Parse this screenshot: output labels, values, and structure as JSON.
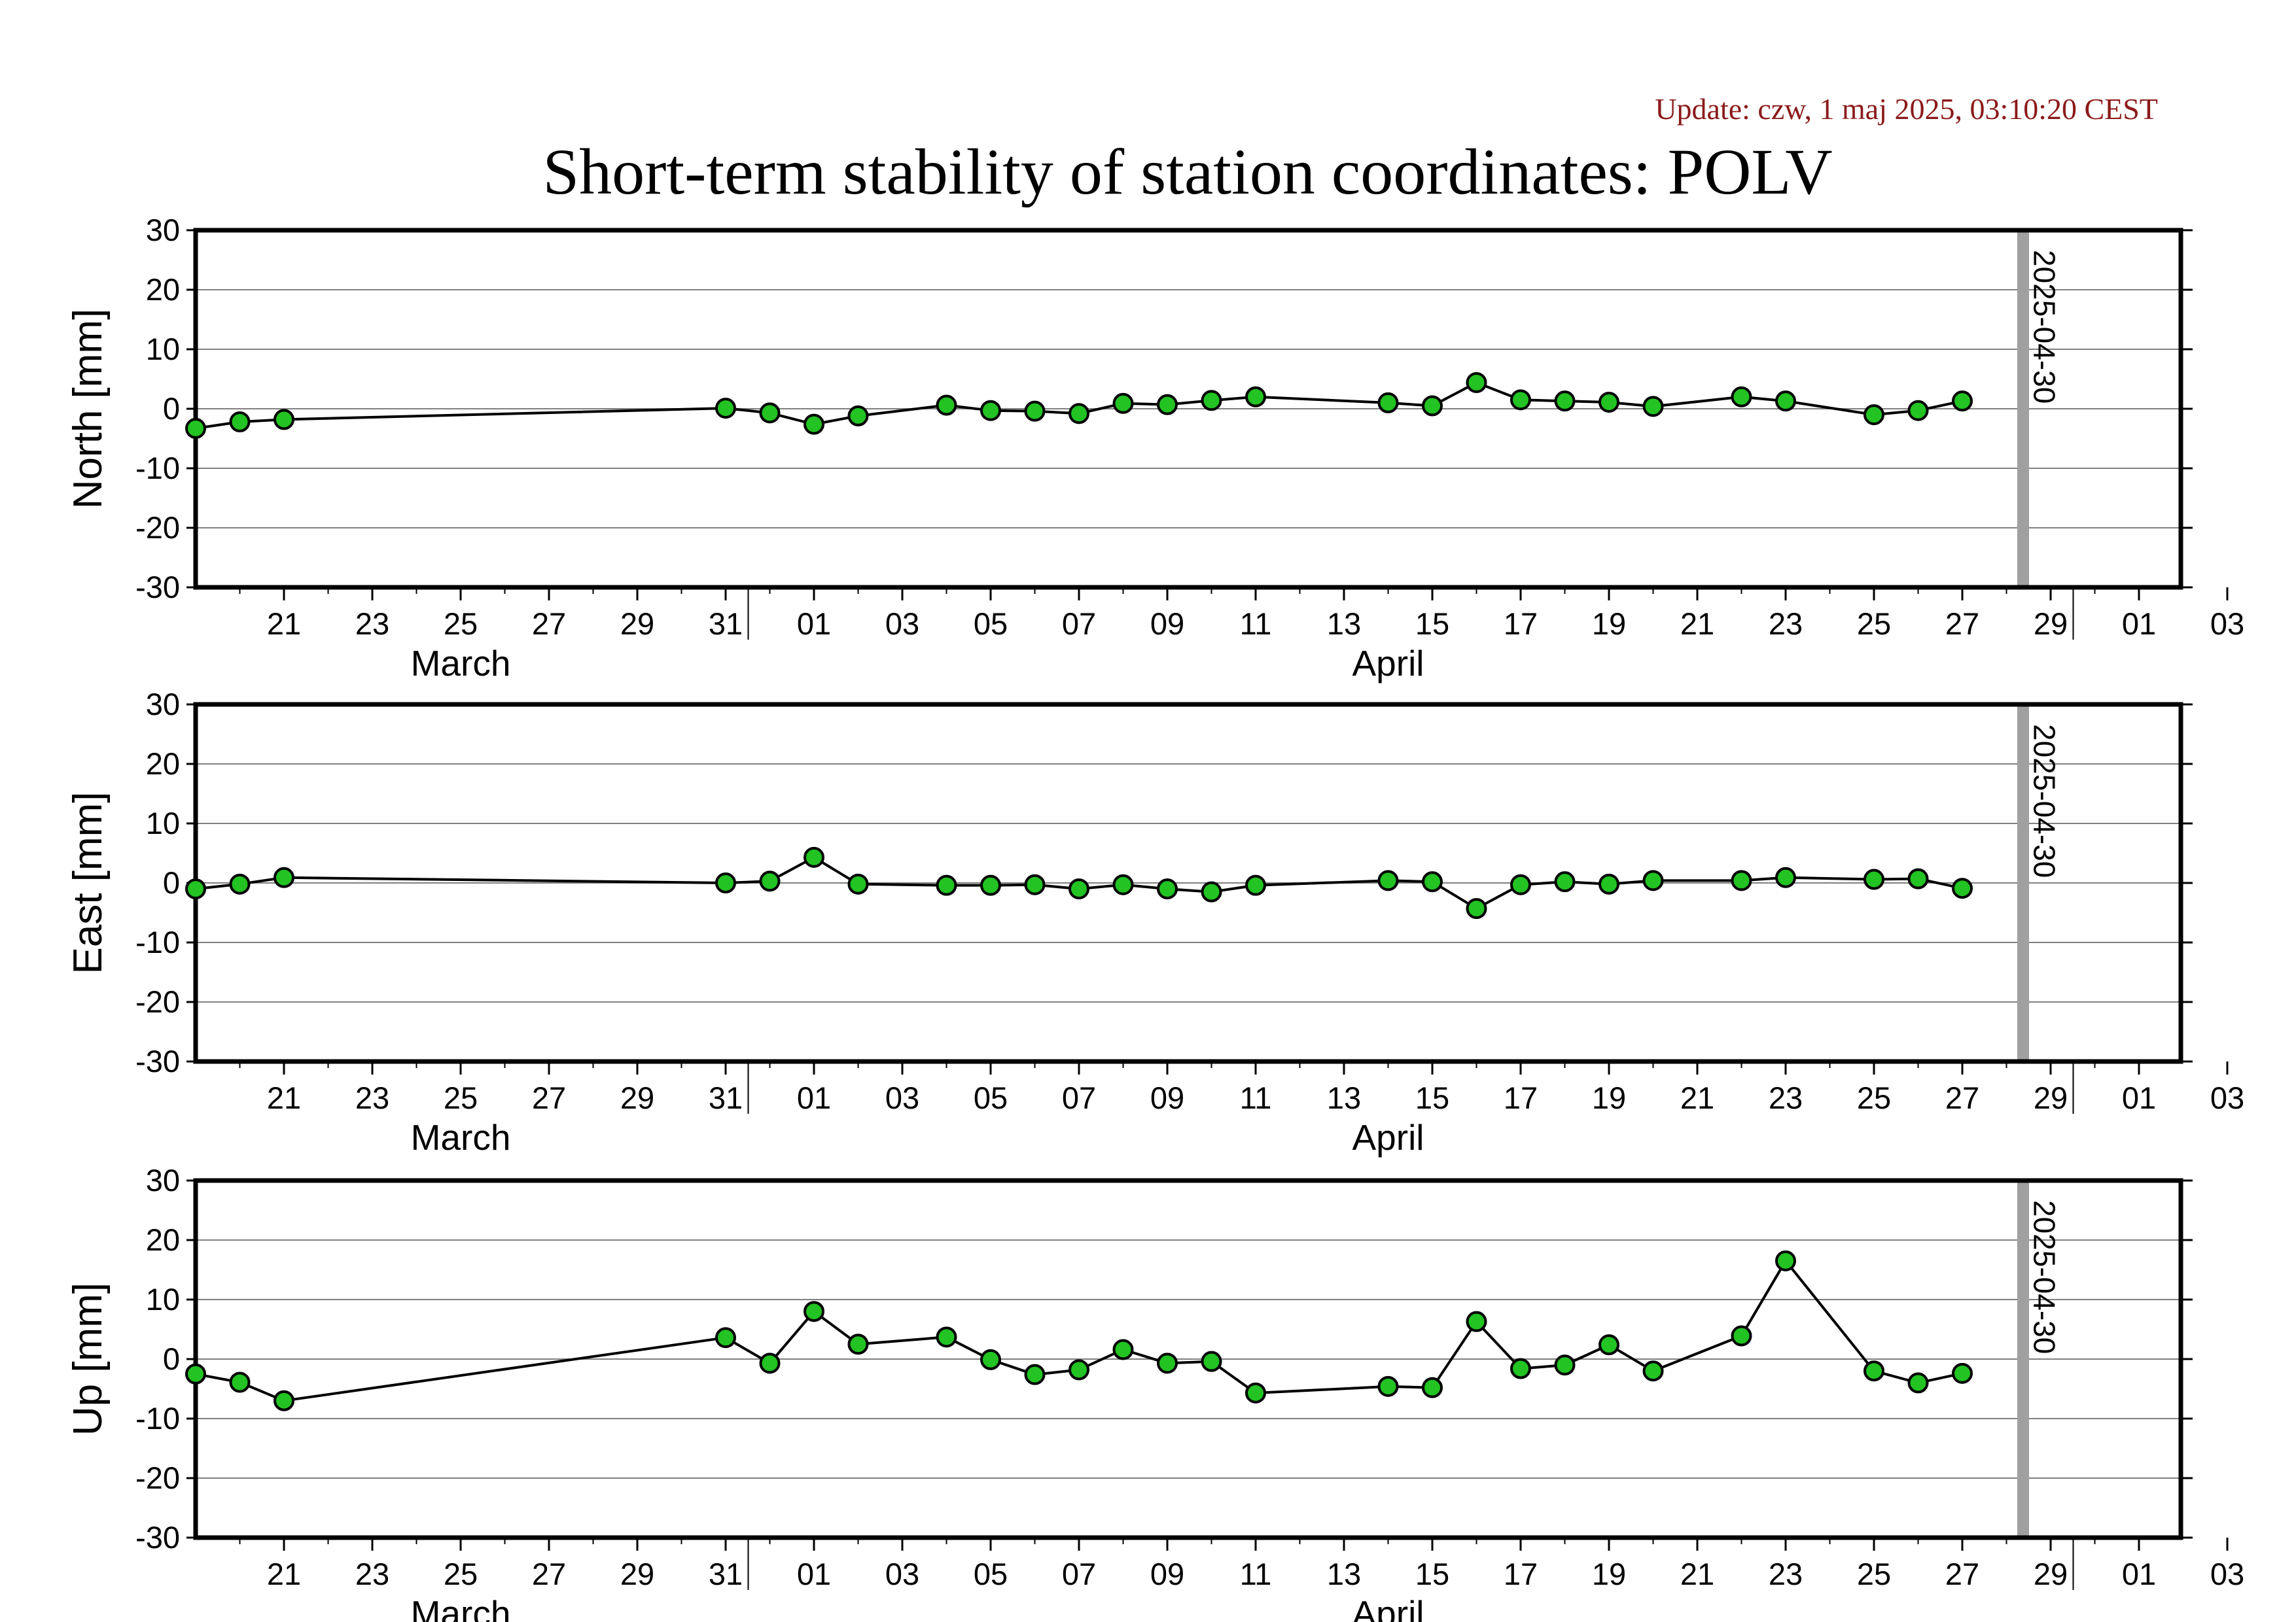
{
  "update": "Update: czw, 1 maj 2025, 03:10:20 CEST",
  "title": "Short-term stability of station coordinates: POLV",
  "colors": {
    "marker_fill": "#22c322",
    "marker_stroke": "#000000",
    "line": "#000000",
    "grid": "#808080",
    "vline": "#a0a0a0"
  },
  "chart_data": [
    {
      "type": "line",
      "title": "",
      "xlabel": "",
      "ylabel": "North [mm]",
      "ylim": [
        -30,
        30
      ],
      "y_ticks": [
        -30,
        -20,
        -10,
        0,
        10,
        20,
        30
      ],
      "xlim": [
        "2025-03-19",
        "2025-05-04"
      ],
      "x_tick_labels": [
        "21",
        "23",
        "25",
        "27",
        "29",
        "31",
        "01",
        "03",
        "05",
        "07",
        "09",
        "11",
        "13",
        "15",
        "17",
        "19",
        "21",
        "23",
        "25",
        "27",
        "29",
        "01",
        "03"
      ],
      "month_labels": [
        "March",
        "April"
      ],
      "grid": "horizontal",
      "marker_date": "2025-04-30",
      "marker_label": "2025-04-30",
      "series": [
        {
          "x": [
            "2025-03-19",
            "2025-03-20",
            "2025-03-21",
            "2025-03-31",
            "2025-04-01",
            "2025-04-02",
            "2025-04-03",
            "2025-04-05",
            "2025-04-06",
            "2025-04-07",
            "2025-04-08",
            "2025-04-09",
            "2025-04-10",
            "2025-04-11",
            "2025-04-12",
            "2025-04-15",
            "2025-04-16",
            "2025-04-17",
            "2025-04-18",
            "2025-04-19",
            "2025-04-20",
            "2025-04-21",
            "2025-04-23",
            "2025-04-24",
            "2025-04-26",
            "2025-04-27",
            "2025-04-28"
          ],
          "values": [
            -3.3,
            -2.2,
            -1.8,
            0.1,
            -0.7,
            -2.6,
            -1.2,
            0.6,
            -0.3,
            -0.4,
            -0.8,
            0.9,
            0.7,
            1.4,
            2.0,
            1.0,
            0.5,
            4.4,
            1.5,
            1.3,
            1.1,
            0.4,
            2.0,
            1.3,
            -1.0,
            -0.3,
            1.3
          ]
        }
      ]
    },
    {
      "type": "line",
      "title": "",
      "xlabel": "",
      "ylabel": "East [mm]",
      "ylim": [
        -30,
        30
      ],
      "y_ticks": [
        -30,
        -20,
        -10,
        0,
        10,
        20,
        30
      ],
      "xlim": [
        "2025-03-19",
        "2025-05-04"
      ],
      "x_tick_labels": [
        "21",
        "23",
        "25",
        "27",
        "29",
        "31",
        "01",
        "03",
        "05",
        "07",
        "09",
        "11",
        "13",
        "15",
        "17",
        "19",
        "21",
        "23",
        "25",
        "27",
        "29",
        "01",
        "03"
      ],
      "month_labels": [
        "March",
        "April"
      ],
      "grid": "horizontal",
      "marker_date": "2025-04-30",
      "marker_label": "2025-04-30",
      "series": [
        {
          "x": [
            "2025-03-19",
            "2025-03-20",
            "2025-03-21",
            "2025-03-31",
            "2025-04-01",
            "2025-04-02",
            "2025-04-03",
            "2025-04-05",
            "2025-04-06",
            "2025-04-07",
            "2025-04-08",
            "2025-04-09",
            "2025-04-10",
            "2025-04-11",
            "2025-04-12",
            "2025-04-15",
            "2025-04-16",
            "2025-04-17",
            "2025-04-18",
            "2025-04-19",
            "2025-04-20",
            "2025-04-21",
            "2025-04-23",
            "2025-04-24",
            "2025-04-26",
            "2025-04-27",
            "2025-04-28"
          ],
          "values": [
            -1.0,
            -0.2,
            0.9,
            0.0,
            0.3,
            4.3,
            -0.2,
            -0.4,
            -0.4,
            -0.3,
            -1.0,
            -0.3,
            -1.0,
            -1.5,
            -0.4,
            0.4,
            0.2,
            -4.3,
            -0.3,
            0.2,
            -0.2,
            0.4,
            0.4,
            0.9,
            0.6,
            0.7,
            -0.9
          ]
        }
      ]
    },
    {
      "type": "line",
      "title": "",
      "xlabel": "",
      "ylabel": "Up [mm]",
      "ylim": [
        -30,
        30
      ],
      "y_ticks": [
        -30,
        -20,
        -10,
        0,
        10,
        20,
        30
      ],
      "xlim": [
        "2025-03-19",
        "2025-05-04"
      ],
      "x_tick_labels": [
        "21",
        "23",
        "25",
        "27",
        "29",
        "31",
        "01",
        "03",
        "05",
        "07",
        "09",
        "11",
        "13",
        "15",
        "17",
        "19",
        "21",
        "23",
        "25",
        "27",
        "29",
        "01",
        "03"
      ],
      "month_labels": [
        "March",
        "April"
      ],
      "grid": "horizontal",
      "marker_date": "2025-04-30",
      "marker_label": "2025-04-30",
      "series": [
        {
          "x": [
            "2025-03-19",
            "2025-03-20",
            "2025-03-21",
            "2025-03-31",
            "2025-04-01",
            "2025-04-02",
            "2025-04-03",
            "2025-04-05",
            "2025-04-06",
            "2025-04-07",
            "2025-04-08",
            "2025-04-09",
            "2025-04-10",
            "2025-04-11",
            "2025-04-12",
            "2025-04-15",
            "2025-04-16",
            "2025-04-17",
            "2025-04-18",
            "2025-04-19",
            "2025-04-20",
            "2025-04-21",
            "2025-04-23",
            "2025-04-24",
            "2025-04-26",
            "2025-04-27",
            "2025-04-28"
          ],
          "values": [
            -2.5,
            -3.9,
            -7.0,
            3.6,
            -0.7,
            8.0,
            2.5,
            3.7,
            -0.1,
            -2.6,
            -1.8,
            1.6,
            -0.7,
            -0.4,
            -5.7,
            -4.6,
            -4.8,
            6.3,
            -1.6,
            -1.0,
            2.4,
            -2.0,
            3.9,
            16.5,
            -2.0,
            -4.0,
            -2.4
          ]
        }
      ]
    }
  ]
}
